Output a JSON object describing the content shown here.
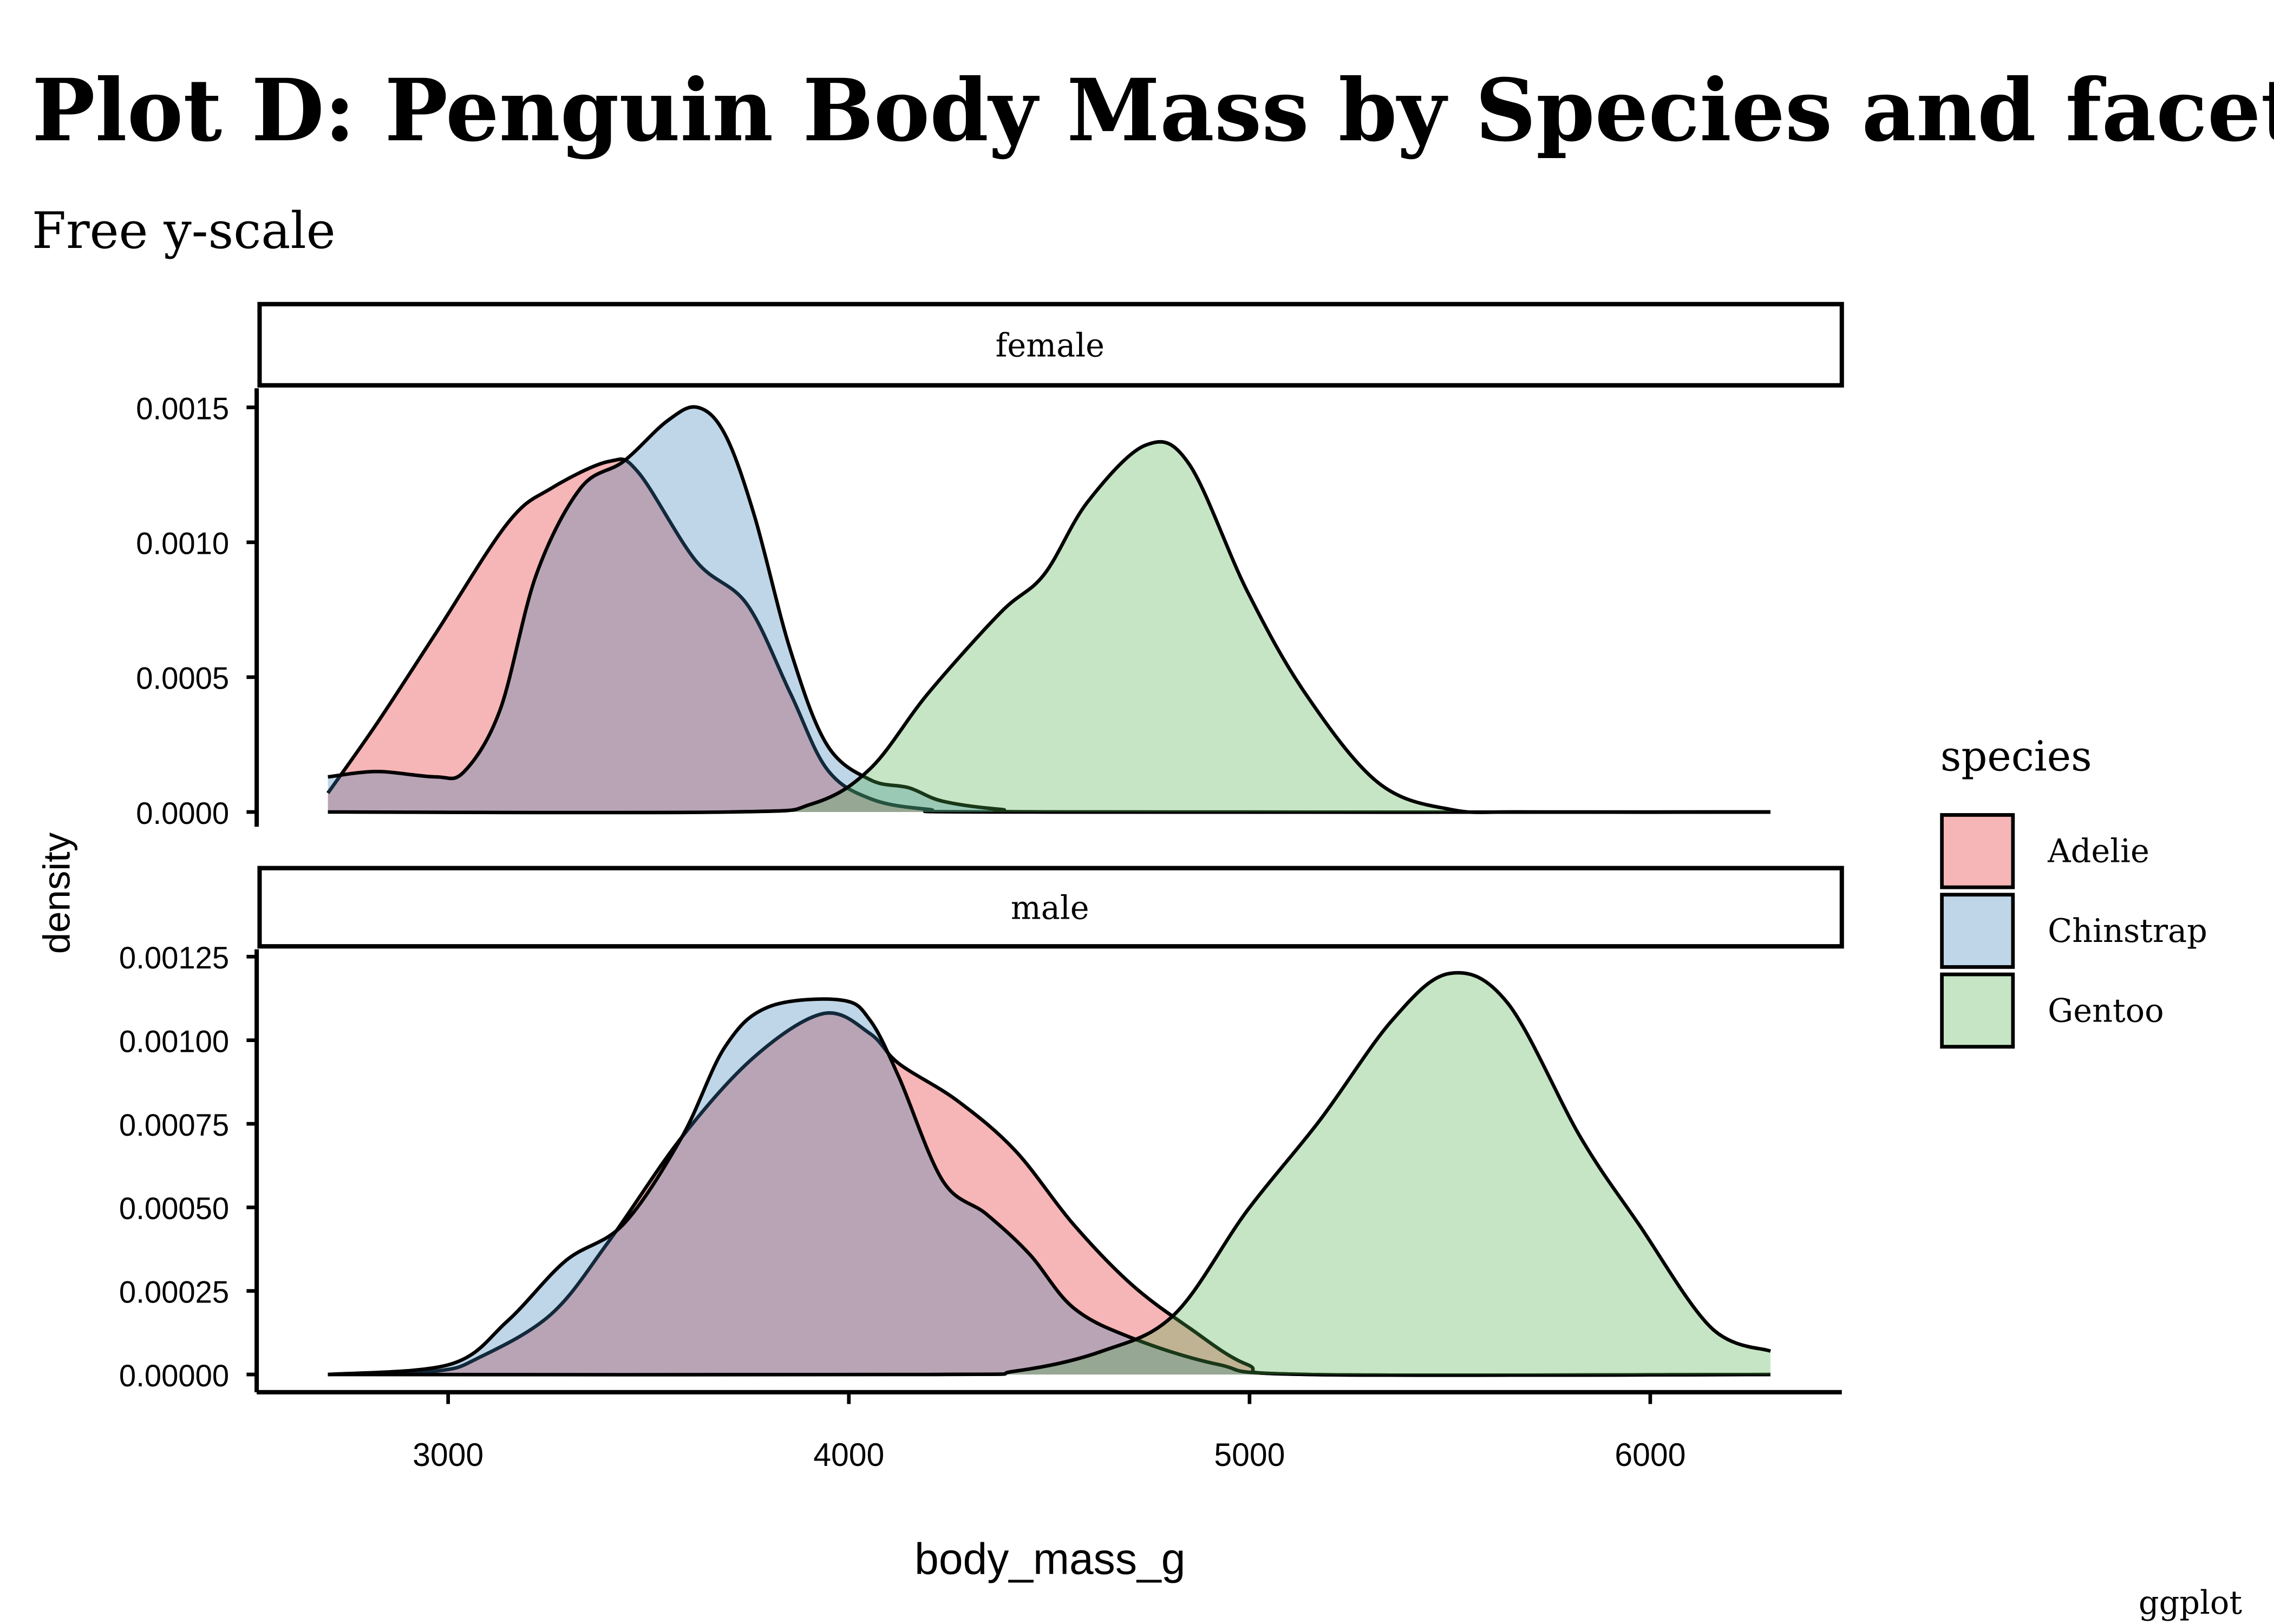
{
  "chart_data": {
    "type": "area",
    "subtype": "density",
    "title": "Plot D: Penguin Body Mass by Species and facetted",
    "subtitle": "Free y-scale",
    "caption": "ggplot",
    "xlabel": "body_mass_g",
    "ylabel": "density",
    "xlim": [
      2700,
      6300
    ],
    "x_ticks": [
      "3000",
      "4000",
      "5000",
      "6000"
    ],
    "x_tick_values": [
      3000,
      4000,
      5000,
      6000
    ],
    "legend": {
      "title": "species",
      "position": "right",
      "entries": [
        "Adelie",
        "Chinstrap",
        "Gentoo"
      ]
    },
    "colors": {
      "Adelie": "#E41A1C",
      "Chinstrap": "#377EB8",
      "Gentoo": "#4DAF4A"
    },
    "fill_alpha": 0.32,
    "panels": [
      {
        "strip": "female",
        "ylim": [
          0,
          0.00155
        ],
        "y_ticks": [
          "0.0000",
          "0.0005",
          "0.0010",
          "0.0015"
        ],
        "y_tick_values": [
          0,
          0.0005,
          0.001,
          0.0015
        ],
        "series": [
          {
            "name": "Adelie",
            "x": [
              2700,
              2823,
              2968,
              3148,
              3257,
              3402,
              3474,
              3619,
              3746,
              3854,
              3945,
              4053,
              4198,
              4400,
              6300
            ],
            "y": [
              7e-05,
              0.00033,
              0.00066,
              0.00107,
              0.0012,
              0.0013,
              0.00126,
              0.00093,
              0.00077,
              0.00044,
              0.00016,
              5e-05,
              1e-05,
              0,
              0
            ]
          },
          {
            "name": "Chinstrap",
            "x": [
              2700,
              2823,
              2968,
              3040,
              3130,
              3220,
              3330,
              3438,
              3547,
              3622,
              3691,
              3764,
              3854,
              3945,
              4053,
              4150,
              4234,
              4379,
              4550,
              6300
            ],
            "y": [
              0.00013,
              0.00015,
              0.00013,
              0.00015,
              0.00038,
              0.00088,
              0.0012,
              0.0013,
              0.00145,
              0.0015,
              0.0014,
              0.0011,
              0.0006,
              0.00025,
              0.00012,
              9e-05,
              4e-05,
              1e-05,
              0,
              0
            ]
          },
          {
            "name": "Gentoo",
            "x": [
              2700,
              3700,
              3908,
              4053,
              4198,
              4379,
              4487,
              4596,
              4741,
              4849,
              4994,
              5139,
              5320,
              5500,
              5700,
              6300
            ],
            "y": [
              0,
              0,
              3e-05,
              0.00016,
              0.00044,
              0.00074,
              0.00088,
              0.00115,
              0.00136,
              0.00129,
              0.00082,
              0.00044,
              0.00011,
              1e-05,
              0,
              0
            ]
          }
        ]
      },
      {
        "strip": "male",
        "ylim": [
          0,
          0.00128
        ],
        "y_ticks": [
          "0.00000",
          "0.00025",
          "0.00050",
          "0.00075",
          "0.00100",
          "0.00125"
        ],
        "y_tick_values": [
          0,
          0.00025,
          0.0005,
          0.00075,
          0.001,
          0.00125
        ],
        "series": [
          {
            "name": "Adelie",
            "x": [
              2700,
              2968,
              3076,
              3257,
              3402,
              3583,
              3764,
              3937,
              4053,
              4125,
              4270,
              4415,
              4560,
              4705,
              4849,
              4994,
              5150,
              6300
            ],
            "y": [
              0,
              1e-05,
              5e-05,
              0.00018,
              0.0004,
              0.00071,
              0.00095,
              0.00108,
              0.00102,
              0.00093,
              0.00082,
              0.00067,
              0.00045,
              0.00027,
              0.00014,
              3e-05,
              0,
              0
            ]
          },
          {
            "name": "Chinstrap",
            "x": [
              2700,
              3004,
              3148,
              3293,
              3438,
              3583,
              3691,
              3800,
              3981,
              4053,
              4125,
              4234,
              4343,
              4451,
              4560,
              4705,
              4922,
              5150,
              6300
            ],
            "y": [
              0,
              3e-05,
              0.00016,
              0.00034,
              0.00045,
              0.00071,
              0.00098,
              0.0011,
              0.00112,
              0.00106,
              0.00089,
              0.00058,
              0.00048,
              0.00036,
              0.0002,
              0.00011,
              3e-05,
              0,
              0
            ]
          },
          {
            "name": "Gentoo",
            "x": [
              2700,
              4200,
              4415,
              4632,
              4813,
              4994,
              5175,
              5356,
              5500,
              5645,
              5826,
              5971,
              6152,
              6300
            ],
            "y": [
              0,
              0,
              1e-05,
              7e-05,
              0.00018,
              0.00049,
              0.00076,
              0.00106,
              0.0012,
              0.00111,
              0.00071,
              0.00045,
              0.00014,
              7e-05
            ]
          }
        ]
      }
    ]
  }
}
